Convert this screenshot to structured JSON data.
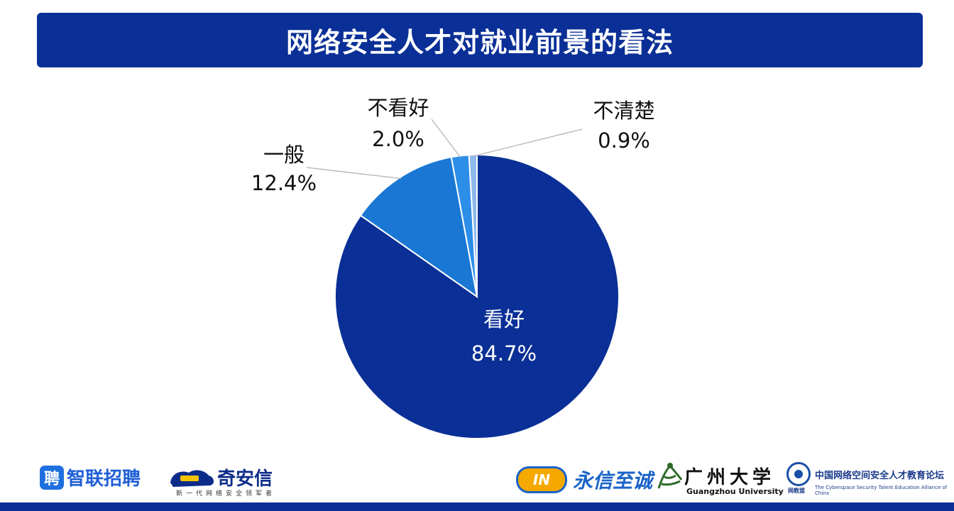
{
  "header": {
    "title": "网络安全人才对就业前景的看法"
  },
  "chart_data": {
    "type": "pie",
    "title": "网络安全人才对就业前景的看法",
    "slices": [
      {
        "label": "看好",
        "value": 84.7,
        "display": "84.7%",
        "color": "#0a2f96"
      },
      {
        "label": "一般",
        "value": 12.4,
        "display": "12.4%",
        "color": "#1a78d4"
      },
      {
        "label": "不看好",
        "value": 2.0,
        "display": "2.0%",
        "color": "#2d8ee8"
      },
      {
        "label": "不清楚",
        "value": 0.9,
        "display": "0.9%",
        "color": "#8db8ea"
      }
    ],
    "start_angle": "12 o'clock",
    "direction": "clockwise"
  },
  "logos": {
    "zhaopin": {
      "mark": "聘",
      "name": "智联招聘"
    },
    "qianxin": {
      "name": "奇安信",
      "tagline": "新一代网络安全领军者"
    },
    "yongxin": {
      "mark": "IN",
      "name": "永信至诚"
    },
    "gzhu": {
      "name": "广州大学",
      "en": "Guangzhou University"
    },
    "alliance": {
      "name": "中国网络空间安全人才教育论坛",
      "en": "The Cyberspace Security Talent Education Alliance of China",
      "short": "网教盟"
    }
  },
  "colors": {
    "primary": "#0a2f96",
    "background": "#ffffff"
  }
}
